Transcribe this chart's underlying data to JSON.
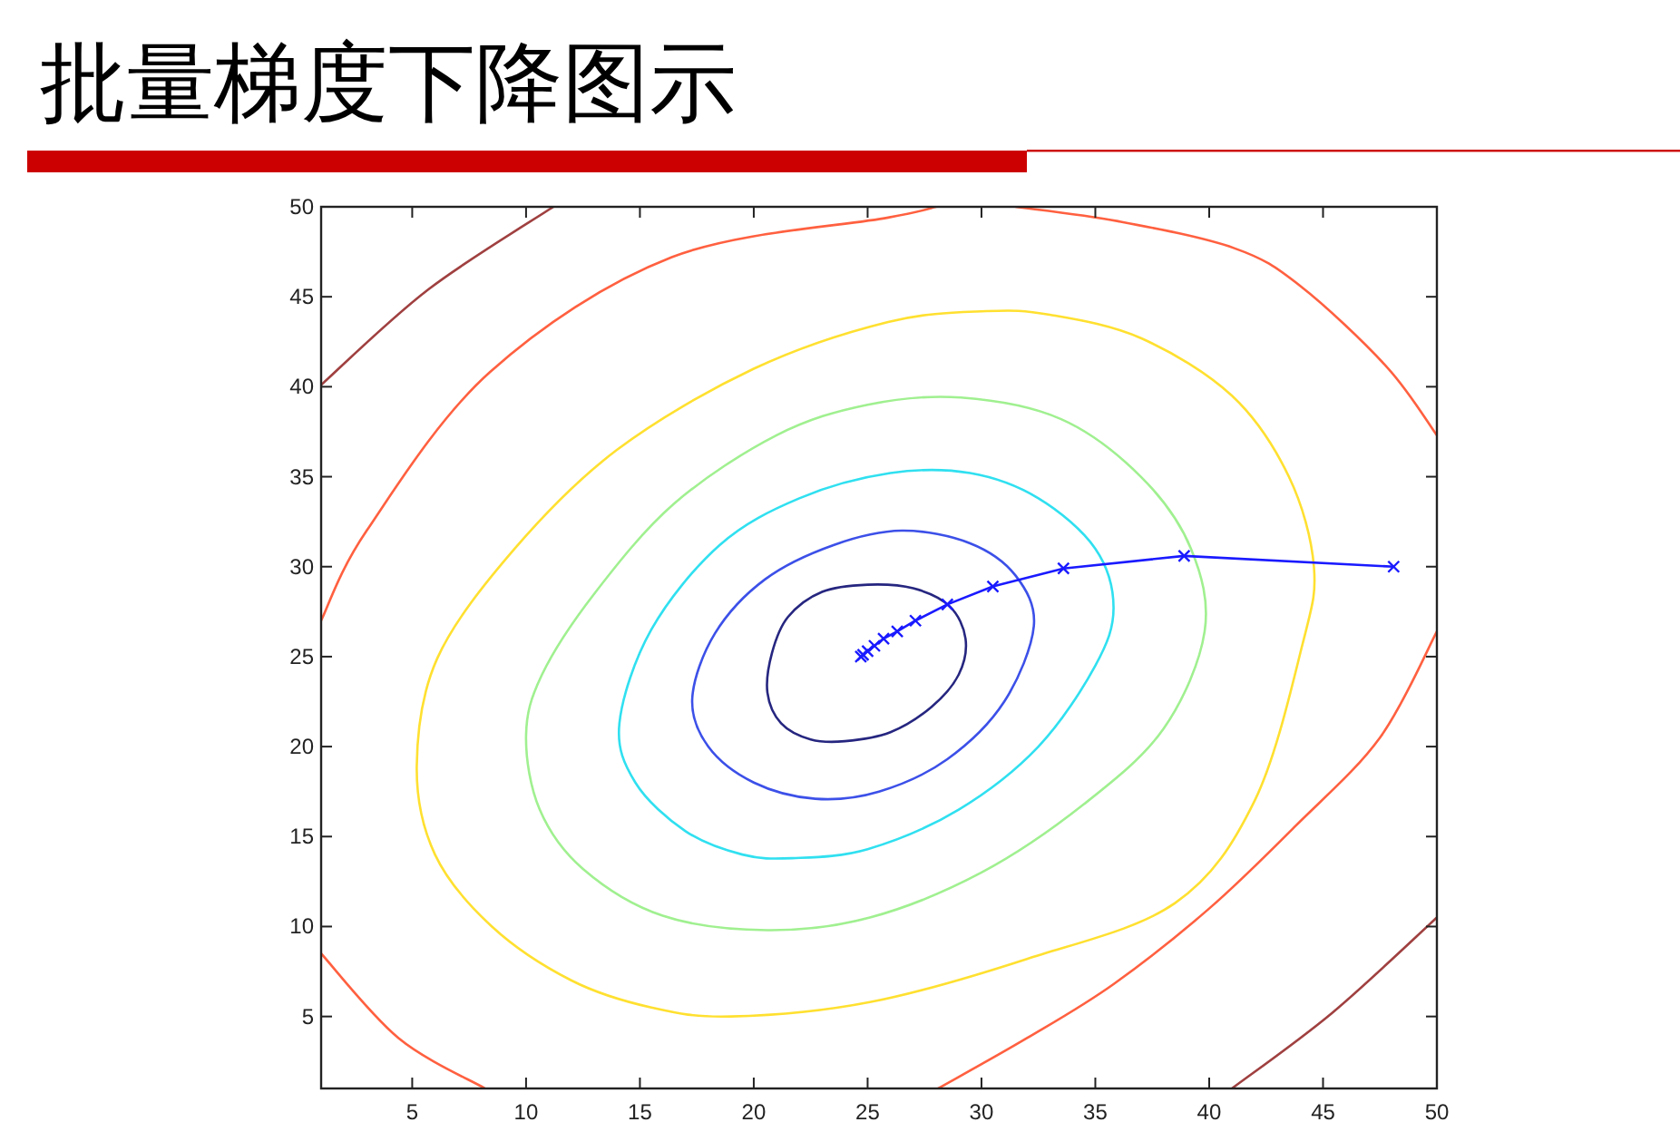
{
  "chart_data": {
    "type": "line",
    "title": "批量梯度下降图示",
    "xlim": [
      1,
      50
    ],
    "ylim": [
      1,
      50
    ],
    "xticks": [
      5,
      10,
      15,
      20,
      25,
      30,
      35,
      40,
      45,
      50
    ],
    "yticks": [
      5,
      10,
      15,
      20,
      25,
      30,
      35,
      40,
      45,
      50
    ],
    "line_style": "solid",
    "series": [
      {
        "color": "#262680",
        "marker": "none",
        "x": [
          20.6,
          21.2,
          22.5,
          24.0,
          26,
          27.8,
          29.0,
          29.3,
          28.6,
          27,
          25,
          23,
          21.5,
          20.8,
          20.6
        ],
        "values": [
          23.0,
          21.3,
          20.4,
          20.3,
          20.8,
          22.2,
          24.0,
          26.0,
          27.8,
          28.8,
          29.0,
          28.6,
          27.2,
          25.2,
          23.0
        ]
      },
      {
        "color": "#3c50e8",
        "marker": "none",
        "x": [
          17.3,
          18,
          20,
          22.7,
          25.5,
          28.5,
          31,
          32.3,
          31.5,
          29.5,
          26.5,
          23.5,
          20.5,
          18.3,
          17.3
        ],
        "values": [
          22.7,
          20,
          18,
          17.1,
          17.5,
          19.3,
          22.5,
          26.7,
          29.5,
          31.3,
          32.0,
          31.2,
          29.3,
          26.3,
          22.7
        ]
      },
      {
        "color": "#30e0f0",
        "marker": "none",
        "x": [
          14.1,
          14.8,
          17,
          19.5,
          21.7,
          25,
          29,
          32.5,
          35,
          35.8,
          35,
          32.5,
          29.5,
          26,
          22,
          18.5,
          15.5,
          14.1
        ],
        "values": [
          21.3,
          18,
          15.3,
          14.0,
          13.8,
          14.3,
          16.5,
          20,
          24.5,
          27.7,
          31,
          33.8,
          35.2,
          35.2,
          33.8,
          31.2,
          26.5,
          21.3
        ]
      },
      {
        "color": "#a0f090",
        "marker": "none",
        "x": [
          10.0,
          10.6,
          12.5,
          16,
          20.6,
          25.1,
          30,
          34.5,
          38,
          39.8,
          39.2,
          37,
          33.5,
          29.1,
          25,
          21,
          16.5,
          13,
          10.7,
          10.0
        ],
        "values": [
          20.6,
          16.5,
          13.2,
          10.6,
          9.8,
          10.5,
          13,
          16.8,
          21,
          26.4,
          31,
          35,
          38.2,
          39.4,
          39,
          37.3,
          33.5,
          28.5,
          24,
          20.6
        ]
      },
      {
        "color": "#ffe030",
        "marker": "none",
        "x": [
          5.2,
          6,
          8.5,
          12,
          15.5,
          19,
          25.1,
          32,
          38.5,
          42,
          44.1,
          44.6,
          43.5,
          41,
          37,
          33,
          30.2,
          25.9,
          20,
          14,
          9.5,
          6.1,
          5.2
        ],
        "values": [
          18.9,
          14,
          10,
          7,
          5.5,
          5.0,
          5.8,
          8.2,
          11.3,
          17,
          25.7,
          30,
          35,
          39.5,
          42.7,
          44,
          44.2,
          43.6,
          41,
          36.5,
          31,
          24.9,
          18.9
        ]
      },
      {
        "color": "#ff6040",
        "marker": "none",
        "x": [
          1,
          3,
          8.4,
          16.4,
          25.9,
          28,
          null,
          31.5,
          36,
          41.1,
          44,
          47.8,
          50,
          null,
          50,
          47.5,
          43.8,
          40,
          35.8,
          32,
          28.1,
          null,
          1,
          4.4,
          8.2
        ],
        "values": [
          27,
          32,
          40.8,
          47.2,
          49.4,
          50,
          null,
          50,
          49.2,
          47.7,
          45.6,
          41.1,
          37.3,
          null,
          26.4,
          20.5,
          15.6,
          11,
          6.8,
          3.8,
          1,
          null,
          8.5,
          3.8,
          1
        ]
      },
      {
        "color": "#a04040",
        "marker": "none",
        "x": [
          1,
          5.7,
          11.2,
          null,
          41,
          45.4,
          50
        ],
        "values": [
          40.1,
          45.4,
          50,
          null,
          1,
          5.2,
          10.5
        ]
      },
      {
        "color": "#1a1aff",
        "marker": "cross",
        "x": [
          48.1,
          38.9,
          33.6,
          30.5,
          28.5,
          27.1,
          26.3,
          25.7,
          25.3,
          25.0,
          24.8,
          24.7
        ],
        "values": [
          30.0,
          30.6,
          29.9,
          28.9,
          27.9,
          27.0,
          26.4,
          26.0,
          25.6,
          25.3,
          25.1,
          25.0
        ]
      }
    ]
  }
}
